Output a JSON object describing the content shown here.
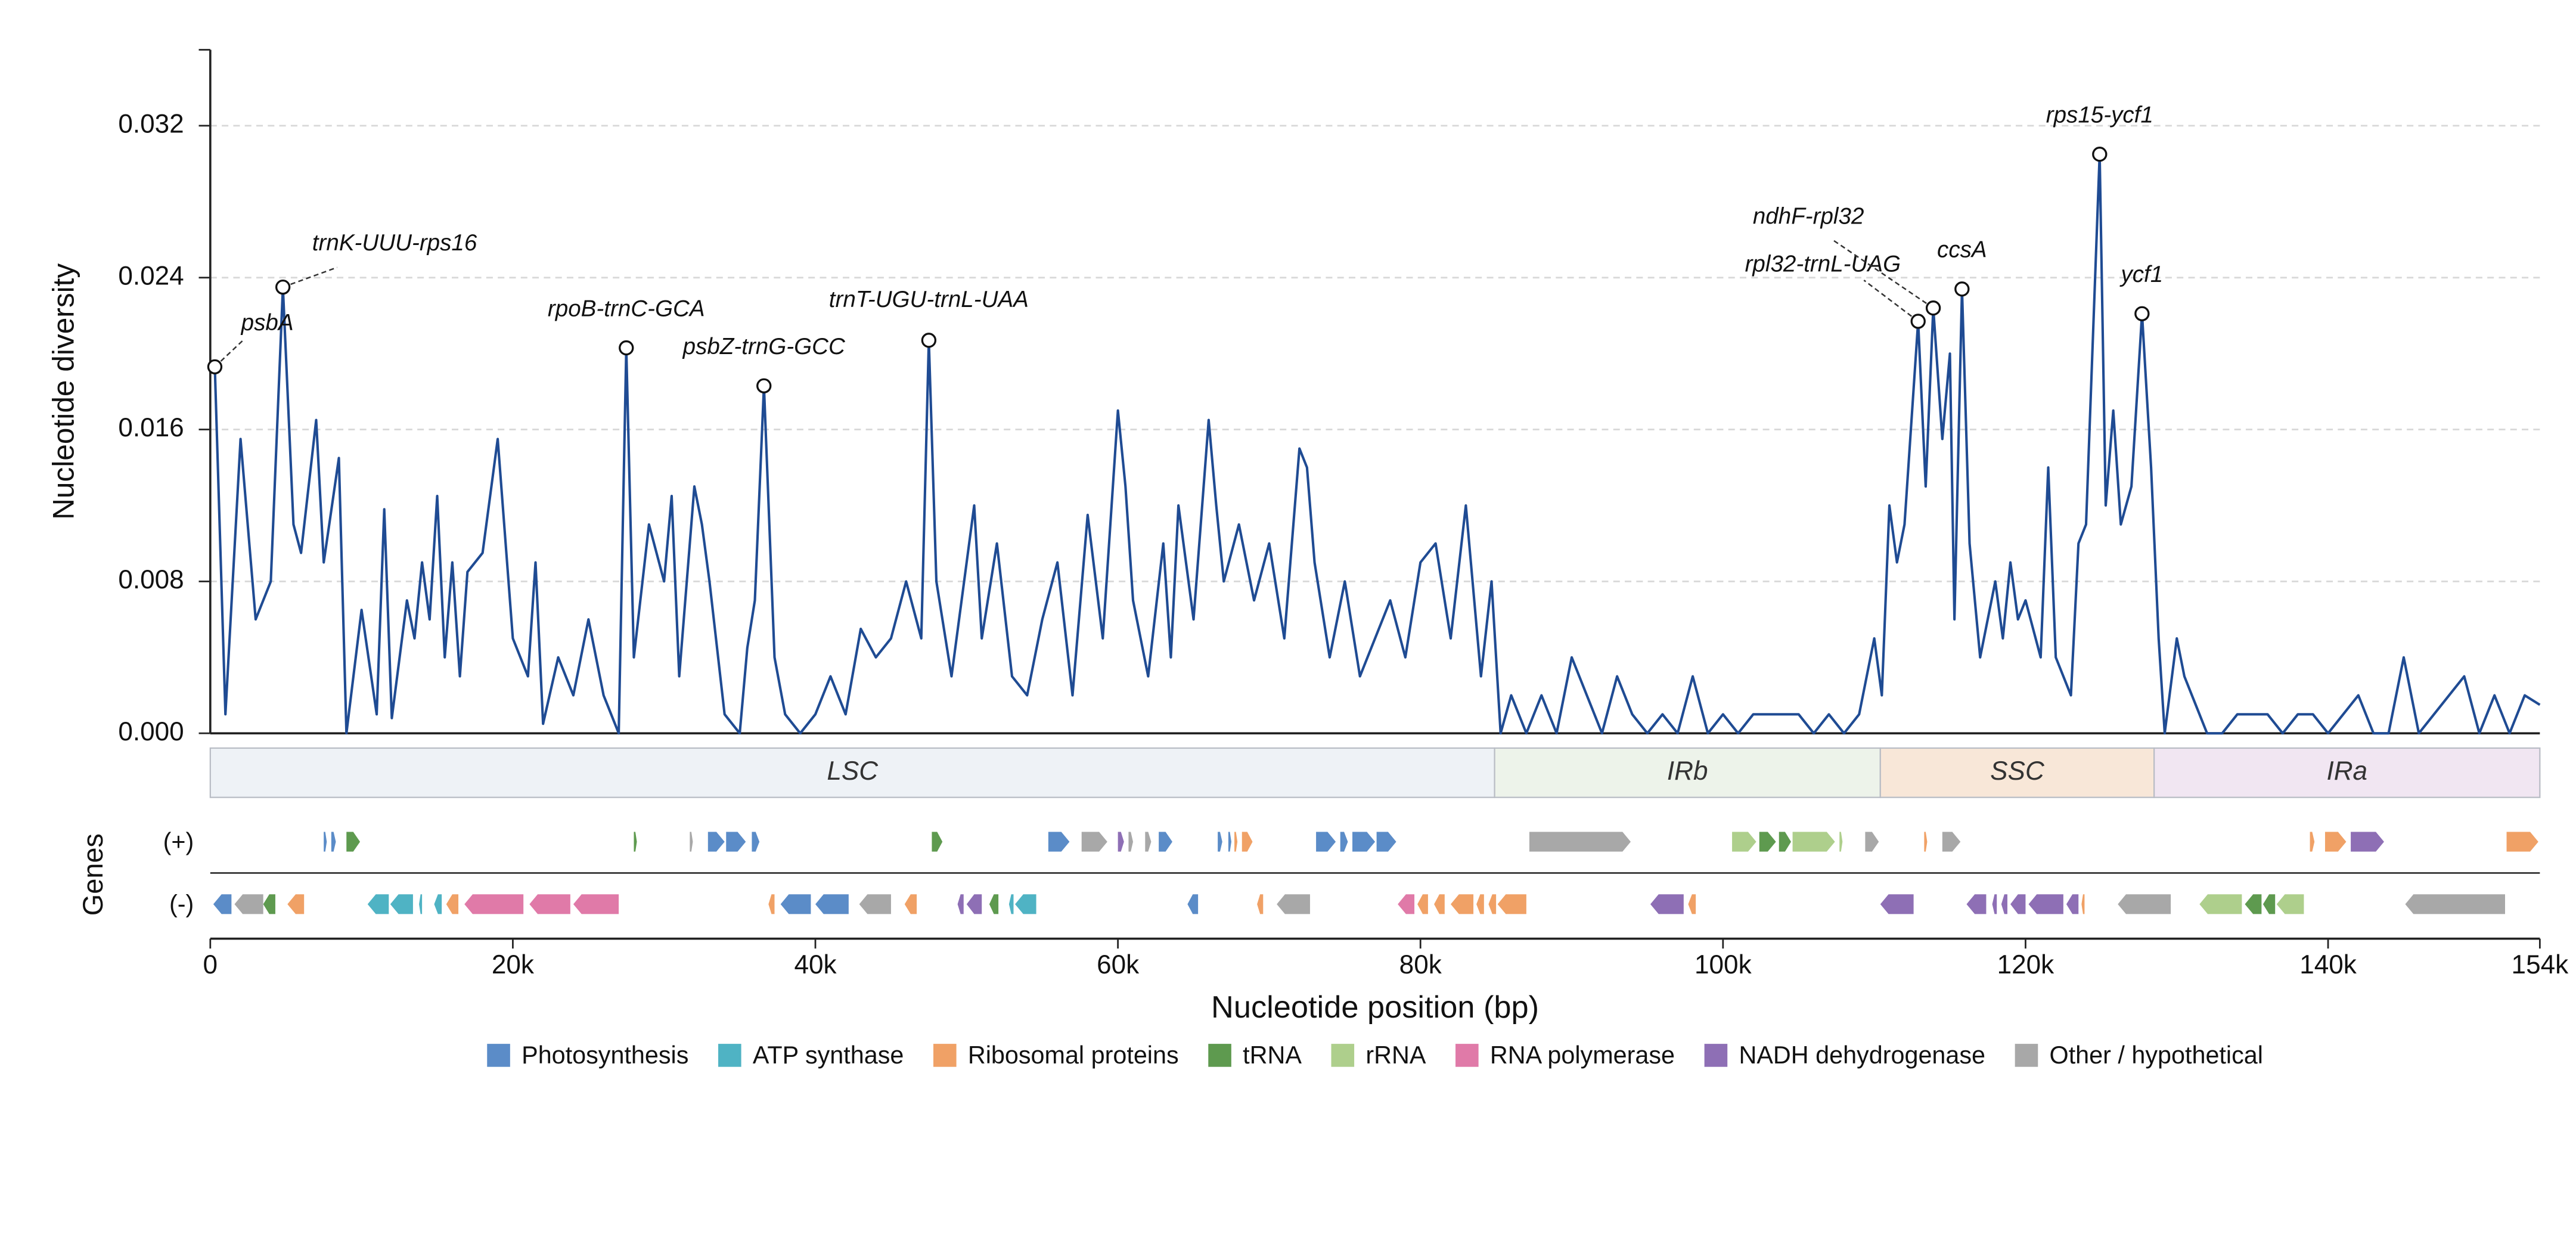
{
  "chart_data": {
    "type": "line",
    "ylabel": "Nucleotide diversity",
    "xlabel": "Nucleotide position (bp)",
    "gene_track_label": "Genes",
    "plus_label": "(+)",
    "minus_label": "(-)",
    "color": "#1f4b93",
    "grid": true,
    "xlim": [
      0,
      154000
    ],
    "ylim": [
      0,
      0.036
    ],
    "xticks": [
      0,
      {
        "value": 20000,
        "label": "20k"
      },
      {
        "value": 40000,
        "label": "40k"
      },
      {
        "value": 60000,
        "label": "60k"
      },
      {
        "value": 80000,
        "label": "80k"
      },
      {
        "value": 100000,
        "label": "100k"
      },
      {
        "value": 120000,
        "label": "120k"
      },
      {
        "value": 140000,
        "label": "140k"
      },
      {
        "value": 154000,
        "label": "154k"
      }
    ],
    "yticks": [
      {
        "value": 0,
        "label": "0.000"
      },
      {
        "value": 0.008,
        "label": "0.008"
      },
      {
        "value": 0.016,
        "label": "0.016"
      },
      {
        "value": 0.024,
        "label": "0.024"
      },
      {
        "value": 0.032,
        "label": "0.032"
      }
    ],
    "x": [
      300,
      1000,
      2000,
      3000,
      4000,
      4800,
      5500,
      6000,
      7000,
      7500,
      8500,
      9000,
      10000,
      11000,
      11500,
      12000,
      13000,
      13500,
      14000,
      14500,
      15000,
      15500,
      16000,
      16500,
      17000,
      18000,
      19000,
      20000,
      21000,
      21500,
      22000,
      23000,
      24000,
      25000,
      26000,
      27000,
      27500,
      28000,
      29000,
      30000,
      30500,
      31000,
      32000,
      32500,
      33000,
      34000,
      35000,
      35500,
      36000,
      36600,
      37300,
      38000,
      39000,
      40000,
      41000,
      42000,
      43000,
      44000,
      45000,
      46000,
      47000,
      47500,
      48000,
      49000,
      50000,
      50500,
      51000,
      52000,
      53000,
      54000,
      55000,
      56000,
      57000,
      58000,
      59000,
      60000,
      60500,
      61000,
      62000,
      63000,
      63500,
      64000,
      65000,
      66000,
      66500,
      67000,
      68000,
      69000,
      70000,
      71000,
      72000,
      72500,
      73000,
      74000,
      75000,
      76000,
      77000,
      78000,
      79000,
      80000,
      81000,
      82000,
      83000,
      84000,
      84700,
      85300,
      86000,
      87000,
      88000,
      89000,
      90000,
      91000,
      92000,
      93000,
      94000,
      95000,
      96000,
      97000,
      98000,
      99000,
      100000,
      101000,
      102000,
      103000,
      104000,
      105000,
      106000,
      107000,
      108000,
      109000,
      110000,
      110500,
      111000,
      111500,
      112000,
      112900,
      113400,
      113900,
      114500,
      115000,
      115300,
      115800,
      116300,
      117000,
      118000,
      118500,
      119000,
      119500,
      120000,
      121000,
      121500,
      122000,
      123000,
      123500,
      124000,
      124900,
      125300,
      125800,
      126300,
      127000,
      127700,
      128300,
      128800,
      129200,
      130000,
      130500,
      131000,
      132000,
      133000,
      134000,
      135000,
      136000,
      137000,
      138000,
      139000,
      140000,
      141000,
      142000,
      143000,
      144000,
      145000,
      146000,
      147000,
      148000,
      149000,
      150000,
      151000,
      152000,
      153000,
      154000
    ],
    "values": [
      0.0193,
      0.001,
      0.0155,
      0.006,
      0.008,
      0.0235,
      0.011,
      0.0095,
      0.0165,
      0.009,
      0.0145,
      0,
      0.0065,
      0.001,
      0.0118,
      0.0008,
      0.007,
      0.005,
      0.009,
      0.006,
      0.0125,
      0.004,
      0.009,
      0.003,
      0.0085,
      0.0095,
      0.0155,
      0.005,
      0.003,
      0.009,
      0.0005,
      0.004,
      0.002,
      0.006,
      0.002,
      0,
      0.0203,
      0.004,
      0.011,
      0.008,
      0.0125,
      0.003,
      0.013,
      0.011,
      0.008,
      0.001,
      0,
      0.0045,
      0.007,
      0.0183,
      0.004,
      0.001,
      0,
      0.001,
      0.003,
      0.001,
      0.0055,
      0.004,
      0.005,
      0.008,
      0.005,
      0.0207,
      0.008,
      0.003,
      0.009,
      0.012,
      0.005,
      0.01,
      0.003,
      0.002,
      0.006,
      0.009,
      0.002,
      0.0115,
      0.005,
      0.017,
      0.013,
      0.007,
      0.003,
      0.01,
      0.004,
      0.012,
      0.006,
      0.0165,
      0.012,
      0.008,
      0.011,
      0.007,
      0.01,
      0.005,
      0.015,
      0.014,
      0.009,
      0.004,
      0.008,
      0.003,
      0.005,
      0.007,
      0.004,
      0.009,
      0.01,
      0.005,
      0.012,
      0.003,
      0.008,
      0,
      0.002,
      0,
      0.002,
      0,
      0.004,
      0.002,
      0,
      0.003,
      0.001,
      0,
      0.001,
      0,
      0.003,
      0,
      0.001,
      0,
      0.001,
      0.001,
      0.001,
      0.001,
      0,
      0.001,
      0,
      0.001,
      0.005,
      0.002,
      0.012,
      0.009,
      0.011,
      0.0217,
      0.013,
      0.0224,
      0.0155,
      0.02,
      0.006,
      0.0234,
      0.01,
      0.004,
      0.008,
      0.005,
      0.009,
      0.006,
      0.007,
      0.004,
      0.014,
      0.004,
      0.002,
      0.01,
      0.011,
      0.0305,
      0.012,
      0.017,
      0.011,
      0.013,
      0.0221,
      0.014,
      0.005,
      0,
      0.005,
      0.003,
      0.002,
      0,
      0,
      0.001,
      0.001,
      0.001,
      0,
      0.001,
      0.001,
      0,
      0.001,
      0.002,
      0,
      0,
      0.004,
      0,
      0.001,
      0.002,
      0.003,
      0,
      0.002,
      0,
      0.002,
      0.0015
    ],
    "annotations": [
      {
        "label": "psbA",
        "x": 300,
        "y": 0.0193
      },
      {
        "label": "trnK-UUU-rps16",
        "x": 4800,
        "y": 0.0235
      },
      {
        "label": "rpoB-trnC-GCA",
        "x": 27500,
        "y": 0.0203
      },
      {
        "label": "psbZ-trnG-GCC",
        "x": 36600,
        "y": 0.0183
      },
      {
        "label": "trnT-UGU-trnL-UAA",
        "x": 47500,
        "y": 0.0207
      },
      {
        "label": "rpl32-trnL-UAG",
        "x": 112900,
        "y": 0.0217
      },
      {
        "label": "ndhF-rpl32",
        "x": 113900,
        "y": 0.0224
      },
      {
        "label": "ccsA",
        "x": 115800,
        "y": 0.0234
      },
      {
        "label": "rps15-ycf1",
        "x": 124900,
        "y": 0.0305
      },
      {
        "label": "ycf1",
        "x": 127700,
        "y": 0.0221
      }
    ],
    "regions": [
      {
        "name": "LSC",
        "start": 0,
        "end": 84900,
        "color": "#eef2f6"
      },
      {
        "name": "IRb",
        "start": 84900,
        "end": 110400,
        "color": "#edf3ea"
      },
      {
        "name": "SSC",
        "start": 110400,
        "end": 128500,
        "color": "#f8e7d8"
      },
      {
        "name": "IRa",
        "start": 128500,
        "end": 154000,
        "color": "#f1e6f2"
      }
    ],
    "legend": [
      {
        "name": "Photosynthesis",
        "color": "#5b8cc8"
      },
      {
        "name": "ATP synthase",
        "color": "#4fb3c4"
      },
      {
        "name": "Ribosomal proteins",
        "color": "#f0a166"
      },
      {
        "name": "tRNA",
        "color": "#5e9a4f"
      },
      {
        "name": "rRNA",
        "color": "#aecf8c"
      },
      {
        "name": "RNA polymerase",
        "color": "#e07aa8"
      },
      {
        "name": "NADH dehydrogenase",
        "color": "#8e6fb5"
      },
      {
        "name": "Other / hypothetical",
        "color": "#a8a8a8"
      }
    ],
    "genes_plus": [
      {
        "start": 7500,
        "end": 7700,
        "category": "Photosynthesis"
      },
      {
        "start": 8000,
        "end": 8300,
        "category": "Photosynthesis"
      },
      {
        "start": 9000,
        "end": 9900,
        "category": "tRNA"
      },
      {
        "start": 28000,
        "end": 28200,
        "category": "tRNA"
      },
      {
        "start": 31700,
        "end": 31900,
        "category": "Other / hypothetical"
      },
      {
        "start": 32900,
        "end": 34000,
        "category": "Photosynthesis"
      },
      {
        "start": 34100,
        "end": 35400,
        "category": "Photosynthesis"
      },
      {
        "start": 35800,
        "end": 36300,
        "category": "Photosynthesis"
      },
      {
        "start": 47700,
        "end": 48400,
        "category": "tRNA"
      },
      {
        "start": 55400,
        "end": 56800,
        "category": "Photosynthesis"
      },
      {
        "start": 57600,
        "end": 59300,
        "category": "Other / hypothetical"
      },
      {
        "start": 60000,
        "end": 60400,
        "category": "NADH dehydrogenase"
      },
      {
        "start": 60700,
        "end": 61000,
        "category": "Other / hypothetical"
      },
      {
        "start": 61800,
        "end": 62200,
        "category": "Other / hypothetical"
      },
      {
        "start": 62700,
        "end": 63600,
        "category": "Photosynthesis"
      },
      {
        "start": 66600,
        "end": 66900,
        "category": "Photosynthesis"
      },
      {
        "start": 67300,
        "end": 67500,
        "category": "Photosynthesis"
      },
      {
        "start": 67700,
        "end": 67900,
        "category": "Ribosomal proteins"
      },
      {
        "start": 68200,
        "end": 68900,
        "category": "Ribosomal proteins"
      },
      {
        "start": 73100,
        "end": 74400,
        "category": "Photosynthesis"
      },
      {
        "start": 74700,
        "end": 75200,
        "category": "Photosynthesis"
      },
      {
        "start": 75500,
        "end": 77000,
        "category": "Photosynthesis"
      },
      {
        "start": 77100,
        "end": 78400,
        "category": "Photosynthesis"
      },
      {
        "start": 87200,
        "end": 93900,
        "category": "Other / hypothetical"
      },
      {
        "start": 100600,
        "end": 102200,
        "category": "rRNA"
      },
      {
        "start": 102400,
        "end": 103500,
        "category": "tRNA"
      },
      {
        "start": 103700,
        "end": 104500,
        "category": "tRNA"
      },
      {
        "start": 104600,
        "end": 107400,
        "category": "rRNA"
      },
      {
        "start": 107700,
        "end": 107900,
        "category": "rRNA"
      },
      {
        "start": 109400,
        "end": 110300,
        "category": "Other / hypothetical"
      },
      {
        "start": 113300,
        "end": 113500,
        "category": "Ribosomal proteins"
      },
      {
        "start": 114500,
        "end": 115700,
        "category": "Other / hypothetical"
      },
      {
        "start": 138800,
        "end": 139100,
        "category": "Ribosomal proteins"
      },
      {
        "start": 139800,
        "end": 141200,
        "category": "Ribosomal proteins"
      },
      {
        "start": 141500,
        "end": 143700,
        "category": "NADH dehydrogenase"
      },
      {
        "start": 151800,
        "end": 153900,
        "category": "Ribosomal proteins"
      }
    ],
    "genes_minus": [
      {
        "start": 200,
        "end": 1400,
        "category": "Photosynthesis"
      },
      {
        "start": 1600,
        "end": 3500,
        "category": "Other / hypothetical"
      },
      {
        "start": 3500,
        "end": 4300,
        "category": "tRNA"
      },
      {
        "start": 5100,
        "end": 6200,
        "category": "Ribosomal proteins"
      },
      {
        "start": 10400,
        "end": 11800,
        "category": "ATP synthase"
      },
      {
        "start": 11900,
        "end": 13400,
        "category": "ATP synthase"
      },
      {
        "start": 13800,
        "end": 14000,
        "category": "ATP synthase"
      },
      {
        "start": 14800,
        "end": 15300,
        "category": "ATP synthase"
      },
      {
        "start": 15600,
        "end": 16400,
        "category": "Ribosomal proteins"
      },
      {
        "start": 16800,
        "end": 20700,
        "category": "RNA polymerase"
      },
      {
        "start": 21100,
        "end": 23800,
        "category": "RNA polymerase"
      },
      {
        "start": 24000,
        "end": 27000,
        "category": "RNA polymerase"
      },
      {
        "start": 36900,
        "end": 37300,
        "category": "Ribosomal proteins"
      },
      {
        "start": 37700,
        "end": 39700,
        "category": "Photosynthesis"
      },
      {
        "start": 40000,
        "end": 42200,
        "category": "Photosynthesis"
      },
      {
        "start": 42900,
        "end": 45000,
        "category": "Other / hypothetical"
      },
      {
        "start": 45900,
        "end": 46700,
        "category": "Ribosomal proteins"
      },
      {
        "start": 49400,
        "end": 49800,
        "category": "NADH dehydrogenase"
      },
      {
        "start": 50000,
        "end": 51000,
        "category": "NADH dehydrogenase"
      },
      {
        "start": 51500,
        "end": 52100,
        "category": "tRNA"
      },
      {
        "start": 52800,
        "end": 53100,
        "category": "ATP synthase"
      },
      {
        "start": 53200,
        "end": 54600,
        "category": "ATP synthase"
      },
      {
        "start": 64600,
        "end": 65300,
        "category": "Photosynthesis"
      },
      {
        "start": 69200,
        "end": 69600,
        "category": "Ribosomal proteins"
      },
      {
        "start": 70500,
        "end": 72700,
        "category": "Other / hypothetical"
      },
      {
        "start": 78500,
        "end": 79600,
        "category": "RNA polymerase"
      },
      {
        "start": 79800,
        "end": 80500,
        "category": "Ribosomal proteins"
      },
      {
        "start": 80900,
        "end": 81600,
        "category": "Ribosomal proteins"
      },
      {
        "start": 82000,
        "end": 83500,
        "category": "Ribosomal proteins"
      },
      {
        "start": 83700,
        "end": 84200,
        "category": "Ribosomal proteins"
      },
      {
        "start": 84500,
        "end": 85000,
        "category": "Ribosomal proteins"
      },
      {
        "start": 85100,
        "end": 87000,
        "category": "Ribosomal proteins"
      },
      {
        "start": 95200,
        "end": 97400,
        "category": "NADH dehydrogenase"
      },
      {
        "start": 97700,
        "end": 98200,
        "category": "Ribosomal proteins"
      },
      {
        "start": 110400,
        "end": 112600,
        "category": "NADH dehydrogenase"
      },
      {
        "start": 116100,
        "end": 117400,
        "category": "NADH dehydrogenase"
      },
      {
        "start": 117800,
        "end": 118100,
        "category": "NADH dehydrogenase"
      },
      {
        "start": 118400,
        "end": 118800,
        "category": "NADH dehydrogenase"
      },
      {
        "start": 119000,
        "end": 120000,
        "category": "NADH dehydrogenase"
      },
      {
        "start": 120200,
        "end": 122500,
        "category": "NADH dehydrogenase"
      },
      {
        "start": 122700,
        "end": 123500,
        "category": "NADH dehydrogenase"
      },
      {
        "start": 123700,
        "end": 123900,
        "category": "Ribosomal proteins"
      },
      {
        "start": 126100,
        "end": 129600,
        "category": "Other / hypothetical"
      },
      {
        "start": 131500,
        "end": 134300,
        "category": "rRNA"
      },
      {
        "start": 134500,
        "end": 135600,
        "category": "tRNA"
      },
      {
        "start": 135700,
        "end": 136500,
        "category": "tRNA"
      },
      {
        "start": 136600,
        "end": 138400,
        "category": "rRNA"
      },
      {
        "start": 145100,
        "end": 151700,
        "category": "Other / hypothetical"
      }
    ]
  }
}
